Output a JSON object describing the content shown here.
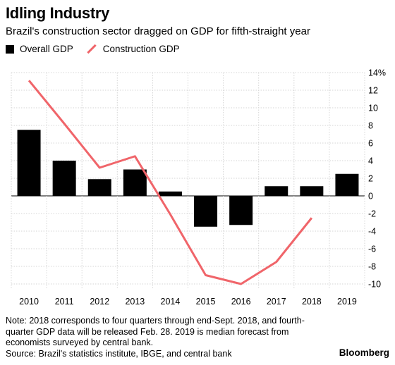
{
  "chart_data": {
    "type": "bar",
    "title": "Idling Industry",
    "subtitle": "Brazil's construction sector dragged on GDP for fifth-straight year",
    "categories": [
      "2010",
      "2011",
      "2012",
      "2013",
      "2014",
      "2015",
      "2016",
      "2017",
      "2018",
      "2019"
    ],
    "series": [
      {
        "name": "Overall GDP",
        "type": "bar",
        "color": "#000000",
        "values": [
          7.5,
          4.0,
          1.9,
          3.0,
          0.5,
          -3.5,
          -3.3,
          1.1,
          1.1,
          2.5
        ]
      },
      {
        "name": "Construction GDP",
        "type": "line",
        "color": "#f0656a",
        "values": [
          13.1,
          8.2,
          3.2,
          4.5,
          -2.1,
          -9.0,
          -10.0,
          -7.5,
          -2.5,
          null
        ]
      }
    ],
    "ylim": [
      -10,
      14
    ],
    "yticks": [
      "14%",
      "12",
      "10",
      "8",
      "6",
      "4",
      "2",
      "0",
      "-2",
      "-4",
      "-6",
      "-8",
      "-10"
    ],
    "ytick_values": [
      14,
      12,
      10,
      8,
      6,
      4,
      2,
      0,
      -2,
      -4,
      -6,
      -8,
      -10
    ],
    "grid": true,
    "legend": "top-left"
  },
  "note": "Note: 2018 corresponds to four quarters through end-Sept. 2018, and fourth-quarter GDP data will be released Feb. 28. 2019 is median forecast from economists surveyed by central bank.",
  "source": "Source: Brazil's statistics institute, IBGE, and central bank",
  "brand": "Bloomberg"
}
